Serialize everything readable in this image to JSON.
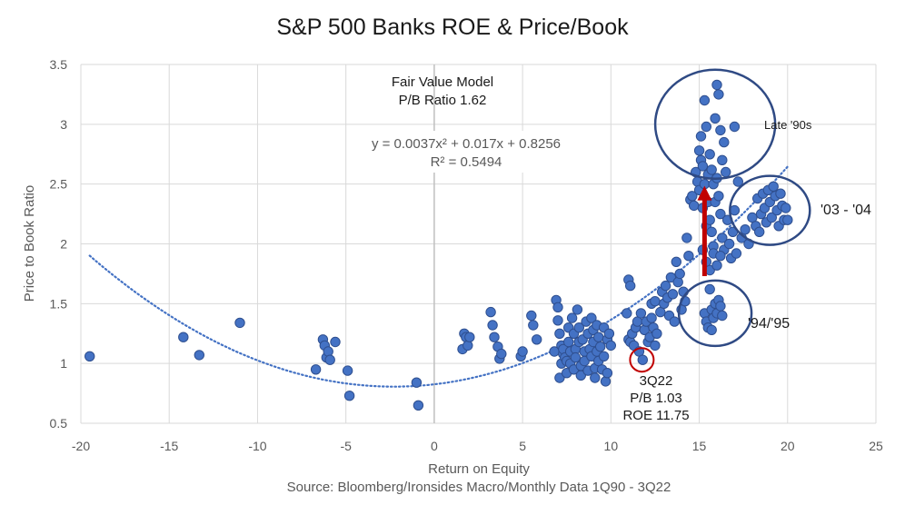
{
  "chart_data": {
    "type": "scatter",
    "title": "S&P 500 Banks ROE & Price/Book",
    "xlabel": "Return on Equity",
    "ylabel": "Price to Book Ratio",
    "source": "Source: Bloomberg/Ironsides Macro/Monthly Data 1Q90 -  3Q22",
    "xlim": [
      -20,
      25
    ],
    "ylim": [
      0.5,
      3.5
    ],
    "x_ticks": [
      "-20",
      "-15",
      "-10",
      "-5",
      "0",
      "5",
      "10",
      "15",
      "20",
      "25"
    ],
    "y_ticks": [
      "0.5",
      "1",
      "1.5",
      "2",
      "2.5",
      "3",
      "3.5"
    ],
    "grid": true,
    "trendline": {
      "type": "polynomial",
      "equation": "y = 0.0037x² + 0.017x + 0.8256",
      "r_squared": "R² = 0.5494",
      "coefficients": [
        0.0037,
        0.017,
        0.8256
      ],
      "x_range": [
        -19.5,
        20
      ]
    },
    "annotations": {
      "fair_value_line1": "Fair Value Model",
      "fair_value_line2": "P/B Ratio 1.62",
      "late90s": "Late '90s",
      "y0304": "'03 - '04",
      "y9495": "'94/'95",
      "q322_line1": "3Q22",
      "q322_line2": "P/B 1.03",
      "q322_line3": "ROE 11.75"
    },
    "highlight_circles": [
      {
        "label": "Late '90s",
        "cx": 15.9,
        "cy": 3.0
      },
      {
        "label": "'03 - '04",
        "cx": 19.0,
        "cy": 2.28
      },
      {
        "label": "'94/'95",
        "cx": 15.9,
        "cy": 1.42
      },
      {
        "label": "3Q22",
        "cx": 11.75,
        "cy": 1.03
      }
    ],
    "arrow": {
      "from": [
        15.3,
        1.73
      ],
      "to": [
        15.3,
        2.47
      ],
      "color": "#c00000"
    },
    "series": [
      {
        "color": "#4472c4",
        "points": [
          [
            -19.5,
            1.06
          ],
          [
            -14.2,
            1.22
          ],
          [
            -13.3,
            1.07
          ],
          [
            -11.0,
            1.34
          ],
          [
            -6.7,
            0.95
          ],
          [
            -6.3,
            1.2
          ],
          [
            -6.2,
            1.15
          ],
          [
            -6.1,
            1.05
          ],
          [
            -6.0,
            1.1
          ],
          [
            -5.9,
            1.03
          ],
          [
            -5.6,
            1.18
          ],
          [
            -4.9,
            0.94
          ],
          [
            -4.8,
            0.73
          ],
          [
            -1.0,
            0.84
          ],
          [
            -0.9,
            0.65
          ],
          [
            1.6,
            1.12
          ],
          [
            1.7,
            1.25
          ],
          [
            1.8,
            1.22
          ],
          [
            1.9,
            1.15
          ],
          [
            2.0,
            1.22
          ],
          [
            3.2,
            1.43
          ],
          [
            3.3,
            1.32
          ],
          [
            3.4,
            1.22
          ],
          [
            3.6,
            1.14
          ],
          [
            3.7,
            1.04
          ],
          [
            3.8,
            1.08
          ],
          [
            4.9,
            1.06
          ],
          [
            5.0,
            1.1
          ],
          [
            5.5,
            1.4
          ],
          [
            5.6,
            1.32
          ],
          [
            5.8,
            1.2
          ],
          [
            6.8,
            1.1
          ],
          [
            6.9,
            1.53
          ],
          [
            7.0,
            1.47
          ],
          [
            7.0,
            1.36
          ],
          [
            7.1,
            1.25
          ],
          [
            7.1,
            0.88
          ],
          [
            7.2,
            1.15
          ],
          [
            7.2,
            1.0
          ],
          [
            7.3,
            1.08
          ],
          [
            7.3,
            1.12
          ],
          [
            7.4,
            1.05
          ],
          [
            7.5,
            1.02
          ],
          [
            7.5,
            0.92
          ],
          [
            7.6,
            1.3
          ],
          [
            7.6,
            1.18
          ],
          [
            7.7,
            1.1
          ],
          [
            7.7,
            1.0
          ],
          [
            7.8,
            1.38
          ],
          [
            7.9,
            1.25
          ],
          [
            7.9,
            0.95
          ],
          [
            8.0,
            1.12
          ],
          [
            8.0,
            1.05
          ],
          [
            8.1,
            1.45
          ],
          [
            8.2,
            1.3
          ],
          [
            8.2,
            1.18
          ],
          [
            8.3,
            0.98
          ],
          [
            8.3,
            0.9
          ],
          [
            8.4,
            1.2
          ],
          [
            8.5,
            1.1
          ],
          [
            8.5,
            1.02
          ],
          [
            8.6,
            1.35
          ],
          [
            8.7,
            1.25
          ],
          [
            8.7,
            0.94
          ],
          [
            8.8,
            1.12
          ],
          [
            8.9,
            1.38
          ],
          [
            8.9,
            1.06
          ],
          [
            9.0,
            1.28
          ],
          [
            9.0,
            1.18
          ],
          [
            9.1,
            0.96
          ],
          [
            9.1,
            0.88
          ],
          [
            9.2,
            1.32
          ],
          [
            9.2,
            1.1
          ],
          [
            9.3,
            1.22
          ],
          [
            9.3,
            1.02
          ],
          [
            9.4,
            1.14
          ],
          [
            9.5,
            0.95
          ],
          [
            9.6,
            1.3
          ],
          [
            9.6,
            1.06
          ],
          [
            9.7,
            0.85
          ],
          [
            9.8,
            0.92
          ],
          [
            9.8,
            1.2
          ],
          [
            9.9,
            1.25
          ],
          [
            10.0,
            1.15
          ],
          [
            10.9,
            1.42
          ],
          [
            11.0,
            1.2
          ],
          [
            11.1,
            1.18
          ],
          [
            11.2,
            1.25
          ],
          [
            11.3,
            1.15
          ],
          [
            11.4,
            1.3
          ],
          [
            11.5,
            1.35
          ],
          [
            11.6,
            1.1
          ],
          [
            11.7,
            1.42
          ],
          [
            11.8,
            1.03
          ],
          [
            11.9,
            1.28
          ],
          [
            12.0,
            1.35
          ],
          [
            12.1,
            1.18
          ],
          [
            12.2,
            1.22
          ],
          [
            12.3,
            1.38
          ],
          [
            12.4,
            1.3
          ],
          [
            12.5,
            1.15
          ],
          [
            12.6,
            1.25
          ],
          [
            11.0,
            1.7
          ],
          [
            11.1,
            1.65
          ],
          [
            12.3,
            1.5
          ],
          [
            12.5,
            1.52
          ],
          [
            12.8,
            1.43
          ],
          [
            12.9,
            1.6
          ],
          [
            13.0,
            1.5
          ],
          [
            13.1,
            1.65
          ],
          [
            13.2,
            1.55
          ],
          [
            13.3,
            1.4
          ],
          [
            13.4,
            1.72
          ],
          [
            13.5,
            1.58
          ],
          [
            13.6,
            1.35
          ],
          [
            13.7,
            1.85
          ],
          [
            13.8,
            1.68
          ],
          [
            13.9,
            1.75
          ],
          [
            14.0,
            1.45
          ],
          [
            14.1,
            1.6
          ],
          [
            14.2,
            1.52
          ],
          [
            14.3,
            2.05
          ],
          [
            14.4,
            1.9
          ],
          [
            14.5,
            2.37
          ],
          [
            14.6,
            2.4
          ],
          [
            14.7,
            2.32
          ],
          [
            14.8,
            2.6
          ],
          [
            14.9,
            2.52
          ],
          [
            15.0,
            2.78
          ],
          [
            15.0,
            2.45
          ],
          [
            15.1,
            2.9
          ],
          [
            15.1,
            2.7
          ],
          [
            15.2,
            2.65
          ],
          [
            15.2,
            2.3
          ],
          [
            15.3,
            3.2
          ],
          [
            15.3,
            2.5
          ],
          [
            15.4,
            2.98
          ],
          [
            15.4,
            2.15
          ],
          [
            15.5,
            2.58
          ],
          [
            15.5,
            2.35
          ],
          [
            15.6,
            2.75
          ],
          [
            15.6,
            2.2
          ],
          [
            15.7,
            2.62
          ],
          [
            15.7,
            2.1
          ],
          [
            15.8,
            2.5
          ],
          [
            15.8,
            1.98
          ],
          [
            15.9,
            3.05
          ],
          [
            15.9,
            2.35
          ],
          [
            16.0,
            3.33
          ],
          [
            16.0,
            2.55
          ],
          [
            16.1,
            3.25
          ],
          [
            16.1,
            2.4
          ],
          [
            16.2,
            2.95
          ],
          [
            16.2,
            2.25
          ],
          [
            16.3,
            2.7
          ],
          [
            16.3,
            2.05
          ],
          [
            16.4,
            2.85
          ],
          [
            16.4,
            1.95
          ],
          [
            16.5,
            2.6
          ],
          [
            16.6,
            2.2
          ],
          [
            16.7,
            2.0
          ],
          [
            16.8,
            1.88
          ],
          [
            16.9,
            2.1
          ],
          [
            17.0,
            2.98
          ],
          [
            17.0,
            2.28
          ],
          [
            17.1,
            1.92
          ],
          [
            17.2,
            2.52
          ],
          [
            17.4,
            2.05
          ],
          [
            17.6,
            2.12
          ],
          [
            17.8,
            2.0
          ],
          [
            15.2,
            1.95
          ],
          [
            15.4,
            1.85
          ],
          [
            15.6,
            1.78
          ],
          [
            15.8,
            1.92
          ],
          [
            16.0,
            1.82
          ],
          [
            16.2,
            1.9
          ],
          [
            15.3,
            1.42
          ],
          [
            15.4,
            1.35
          ],
          [
            15.5,
            1.3
          ],
          [
            15.7,
            1.45
          ],
          [
            15.8,
            1.38
          ],
          [
            15.9,
            1.5
          ],
          [
            16.0,
            1.42
          ],
          [
            16.1,
            1.53
          ],
          [
            16.2,
            1.48
          ],
          [
            16.3,
            1.4
          ],
          [
            15.7,
            1.28
          ],
          [
            15.6,
            1.62
          ],
          [
            18.0,
            2.22
          ],
          [
            18.2,
            2.15
          ],
          [
            18.3,
            2.38
          ],
          [
            18.4,
            2.1
          ],
          [
            18.5,
            2.25
          ],
          [
            18.6,
            2.42
          ],
          [
            18.7,
            2.3
          ],
          [
            18.8,
            2.18
          ],
          [
            18.9,
            2.45
          ],
          [
            19.0,
            2.35
          ],
          [
            19.1,
            2.22
          ],
          [
            19.2,
            2.48
          ],
          [
            19.3,
            2.4
          ],
          [
            19.4,
            2.28
          ],
          [
            19.5,
            2.15
          ],
          [
            19.6,
            2.42
          ],
          [
            19.7,
            2.32
          ],
          [
            19.8,
            2.2
          ],
          [
            20.0,
            2.2
          ],
          [
            19.9,
            2.3
          ]
        ]
      }
    ]
  }
}
